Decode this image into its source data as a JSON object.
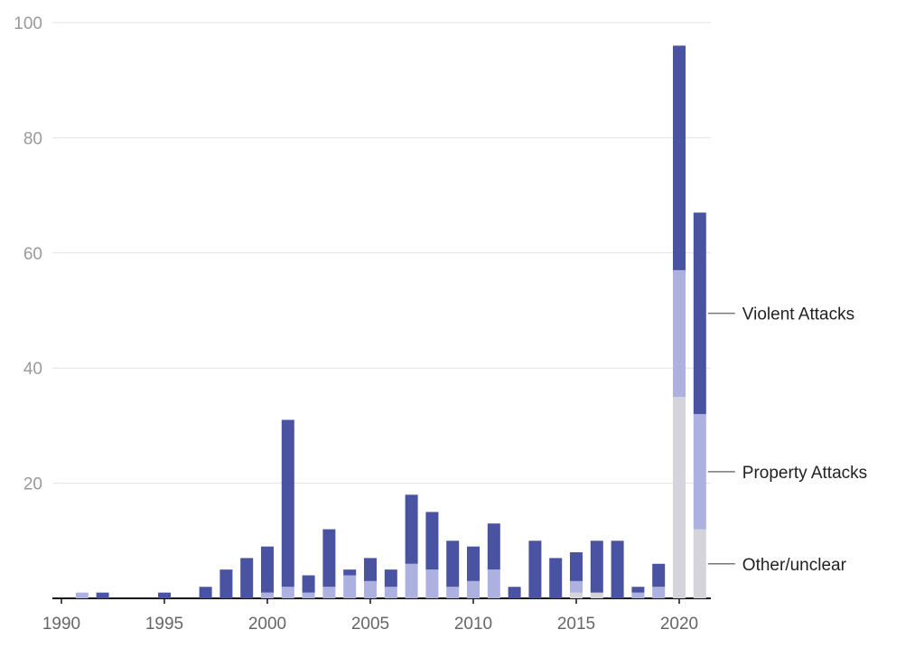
{
  "chart_data": {
    "type": "bar",
    "stacked": true,
    "title": "",
    "xlabel": "",
    "ylabel": "",
    "ylim": [
      0,
      100
    ],
    "yticks": [
      0,
      20,
      40,
      60,
      80,
      100
    ],
    "ytick_labels": [
      "",
      "20",
      "40",
      "60",
      "80",
      "100"
    ],
    "xtick_labels": [
      "1990",
      "1995",
      "2000",
      "2005",
      "2010",
      "2015",
      "2020"
    ],
    "grid": true,
    "legend_placement": "right, direct labels",
    "categories": [
      1990,
      1991,
      1992,
      1993,
      1994,
      1995,
      1996,
      1997,
      1998,
      1999,
      2000,
      2001,
      2002,
      2003,
      2004,
      2005,
      2006,
      2007,
      2008,
      2009,
      2010,
      2011,
      2012,
      2013,
      2014,
      2015,
      2016,
      2017,
      2018,
      2019,
      2020,
      2021
    ],
    "series": [
      {
        "name": "Other/unclear",
        "color": "#d4d4da",
        "values": [
          0,
          0,
          0,
          0,
          0,
          0,
          0,
          0,
          0,
          0,
          0,
          0,
          0,
          0,
          0,
          0,
          0,
          0,
          0,
          0,
          0,
          0,
          0,
          0,
          0,
          1,
          1,
          0,
          0,
          0,
          35,
          12
        ]
      },
      {
        "name": "Property Attacks",
        "color": "#adb1df",
        "values": [
          0,
          1,
          0,
          0,
          0,
          0,
          0,
          0,
          0,
          0,
          1,
          2,
          1,
          2,
          4,
          3,
          2,
          6,
          5,
          2,
          3,
          5,
          0,
          0,
          0,
          2,
          0,
          0,
          1,
          2,
          22,
          20
        ]
      },
      {
        "name": "Violent Attacks",
        "color": "#4a53a1",
        "values": [
          0,
          0,
          1,
          0,
          0,
          1,
          0,
          2,
          5,
          7,
          8,
          29,
          3,
          10,
          1,
          4,
          3,
          12,
          10,
          8,
          6,
          8,
          2,
          10,
          7,
          5,
          9,
          10,
          1,
          4,
          39,
          35
        ]
      }
    ]
  }
}
